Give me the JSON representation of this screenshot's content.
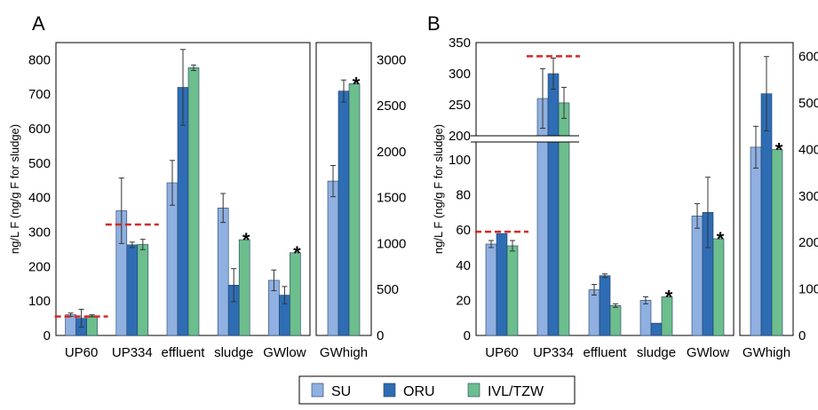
{
  "legend": [
    {
      "name": "SU",
      "color": "#8FB0E0"
    },
    {
      "name": "ORU",
      "color": "#2E6DB4"
    },
    {
      "name": "IVL/TZW",
      "color": "#6DBE8D"
    }
  ],
  "reference_line_color": "#D62728",
  "chart_data": [
    {
      "panel": "A",
      "type": "bar",
      "ylabel": "ng/L F (ng/g F for sludge)",
      "ylim": [
        0,
        850
      ],
      "yticks": [
        0,
        100,
        200,
        300,
        400,
        500,
        600,
        700,
        800
      ],
      "y2lim": [
        0,
        3187.5
      ],
      "y2ticks": [
        0,
        500,
        1000,
        1500,
        2000,
        2500,
        3000
      ],
      "categories": [
        "UP60",
        "UP334",
        "effluent",
        "sludge",
        "GWlow",
        "GWhigh"
      ],
      "series": [
        {
          "name": "SU",
          "values": [
            60,
            362,
            443,
            370,
            160,
            1680
          ],
          "errors": [
            5,
            95,
            65,
            42,
            30,
            170
          ]
        },
        {
          "name": "ORU",
          "values": [
            50,
            263,
            720,
            146,
            117,
            2660
          ],
          "errors": [
            26,
            8,
            110,
            48,
            25,
            120
          ]
        },
        {
          "name": "IVL/TZW",
          "values": [
            57,
            264,
            777,
            278,
            240,
            2740
          ],
          "errors": [
            3,
            15,
            8,
            0,
            0,
            0
          ]
        }
      ],
      "secondary_axis_categories": [
        "GWhigh"
      ],
      "stars": [
        "sludge",
        "GWlow",
        "GWhigh"
      ],
      "reference_lines": [
        {
          "category": "UP60",
          "value": 55
        },
        {
          "category": "UP334",
          "value": 322
        }
      ]
    },
    {
      "panel": "B",
      "type": "bar",
      "ylabel": "ng/L F (ng/g F for sludge)",
      "ylim_lower": [
        0,
        105
      ],
      "yticks_lower": [
        0,
        20,
        40,
        60,
        80,
        100
      ],
      "ylim_upper": [
        200,
        350
      ],
      "yticks_upper": [
        200,
        250,
        300,
        350
      ],
      "y2lim": [
        0,
        630
      ],
      "y2ticks": [
        0,
        100,
        200,
        300,
        400,
        500,
        600
      ],
      "categories": [
        "UP60",
        "UP334",
        "effluent",
        "sludge",
        "GWlow",
        "GWhigh"
      ],
      "series": [
        {
          "name": "SU",
          "values": [
            52,
            260,
            26,
            20,
            68,
            405
          ],
          "errors": [
            2,
            48,
            3,
            2,
            7,
            45
          ]
        },
        {
          "name": "ORU",
          "values": [
            58,
            300,
            34,
            7,
            70,
            520
          ],
          "errors": [
            0,
            25,
            1,
            0,
            20,
            80
          ]
        },
        {
          "name": "IVL/TZW",
          "values": [
            51,
            253,
            17,
            22,
            55,
            400
          ],
          "errors": [
            3,
            25,
            1,
            0,
            0,
            0
          ]
        }
      ],
      "secondary_axis_categories": [
        "GWhigh"
      ],
      "stars": [
        "sludge",
        "GWlow",
        "GWhigh"
      ],
      "reference_lines": [
        {
          "category": "UP60",
          "value": 59
        },
        {
          "category": "UP334",
          "value": 328
        }
      ]
    }
  ]
}
